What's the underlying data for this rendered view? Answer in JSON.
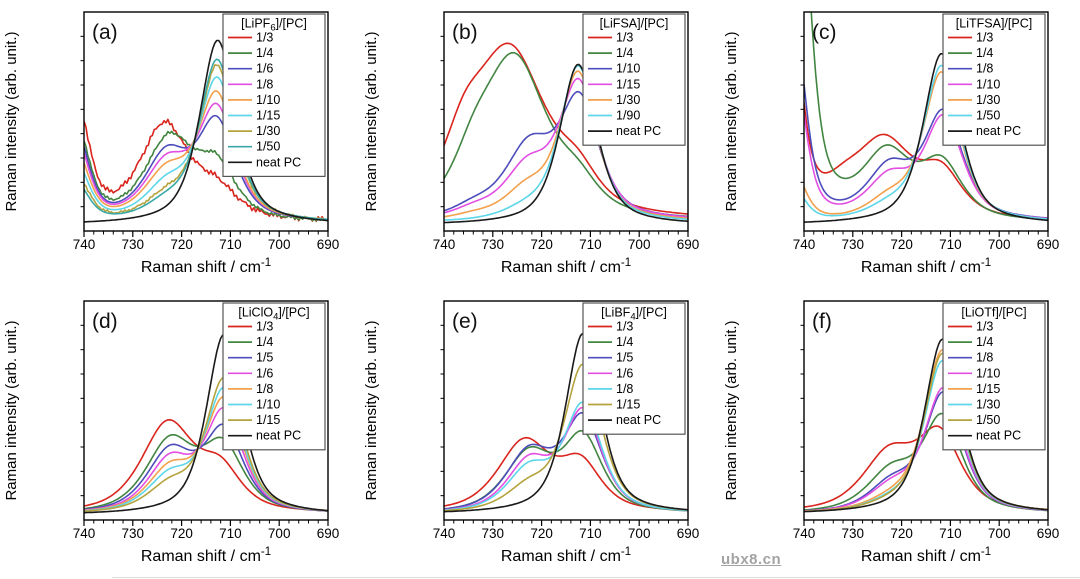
{
  "watermark": {
    "text": "ubx8.cn",
    "color": "#a3a3a3"
  },
  "colors": {
    "red": "#d9251d",
    "green": "#418541",
    "blue": "#4d4dbb",
    "magenta": "#e24fe2",
    "orange": "#f2a04c",
    "cyan": "#5cd6e8",
    "darkyellow": "#b4a33e",
    "teal": "#3ba8a8",
    "black": "#1a1a1a"
  },
  "chart_data": {
    "type": "line",
    "xlabel_segments": [
      {
        "t": "Raman shift / cm"
      },
      {
        "t": "-1",
        "sup": true
      }
    ],
    "ylabel": "Raman intensity (arb. unit.)",
    "x_ticks": [
      740,
      730,
      720,
      710,
      700,
      690
    ],
    "x_minor_step": 2,
    "x_range": [
      740,
      690
    ],
    "x_axis_reversed": true,
    "ylim": [
      0,
      1.15
    ],
    "grid": false,
    "legend_position": "top-right-inside",
    "peak_format": "each series is a sum of pseudo-Voigt bands [center_cm-1, height_arb, fwhm_cm-1] plus flat base",
    "panels": [
      {
        "id": "a",
        "label": "(a)",
        "legend_title": [
          {
            "t": "[LiPF"
          },
          {
            "t": "6",
            "sub": true
          },
          {
            "t": "]/[PC]"
          }
        ],
        "series": [
          {
            "label": "1/3",
            "color": "red",
            "peaks": [
              [
                712.8,
                0.14,
                10.0
              ],
              [
                723.5,
                0.5,
                12.0
              ],
              [
                741.5,
                0.62,
                6.0
              ]
            ],
            "base": 0.045,
            "noise": 0.01
          },
          {
            "label": "1/4",
            "color": "green",
            "peaks": [
              [
                712.8,
                0.26,
                9.5
              ],
              [
                722.5,
                0.43,
                12.0
              ],
              [
                741.5,
                0.5,
                6.0
              ]
            ],
            "base": 0.04,
            "noise": 0.006
          },
          {
            "label": "1/6",
            "color": "blue",
            "peaks": [
              [
                712.8,
                0.5,
                9.2
              ],
              [
                723.0,
                0.34,
                11.0
              ],
              [
                741.5,
                0.46,
                6.0
              ]
            ],
            "base": 0.04
          },
          {
            "label": "1/8",
            "color": "magenta",
            "peaks": [
              [
                712.8,
                0.575,
                9.2
              ],
              [
                723.0,
                0.29,
                11.0
              ],
              [
                741.5,
                0.42,
                6.0
              ]
            ],
            "base": 0.04
          },
          {
            "label": "1/10",
            "color": "orange",
            "peaks": [
              [
                712.8,
                0.65,
                9.0
              ],
              [
                723.0,
                0.24,
                11.0
              ],
              [
                741.5,
                0.36,
                6.0
              ]
            ],
            "base": 0.04
          },
          {
            "label": "1/15",
            "color": "cyan",
            "peaks": [
              [
                712.7,
                0.74,
                9.0
              ],
              [
                723.0,
                0.17,
                10.5
              ],
              [
                741.5,
                0.3,
                6.0
              ]
            ],
            "base": 0.04
          },
          {
            "label": "1/30",
            "color": "darkyellow",
            "peaks": [
              [
                712.7,
                0.815,
                8.8
              ],
              [
                723.0,
                0.11,
                10.5
              ],
              [
                741.5,
                0.24,
                6.0
              ]
            ],
            "base": 0.038,
            "noise": 0.005
          },
          {
            "label": "1/50",
            "color": "teal",
            "peaks": [
              [
                712.7,
                0.85,
                8.8
              ],
              [
                723.0,
                0.08,
                10.5
              ],
              [
                741.5,
                0.2,
                6.0
              ]
            ],
            "base": 0.038
          },
          {
            "label": "neat PC",
            "color": "black",
            "peaks": [
              [
                712.6,
                0.97,
                8.8
              ]
            ],
            "base": 0.032
          }
        ]
      },
      {
        "id": "b",
        "label": "(b)",
        "legend_title": [
          {
            "t": "[LiFSA]/[PC]"
          }
        ],
        "series": [
          {
            "label": "1/3",
            "color": "red",
            "peaks": [
              [
                712.5,
                0.15,
                10.0
              ],
              [
                726.5,
                0.88,
                18.0
              ],
              [
                736.0,
                0.25,
                10.0
              ]
            ],
            "base": 0.05
          },
          {
            "label": "1/4",
            "color": "green",
            "peaks": [
              [
                712.5,
                0.13,
                10.0
              ],
              [
                725.5,
                0.84,
                16.0
              ],
              [
                734.0,
                0.18,
                10.0
              ]
            ],
            "base": 0.045
          },
          {
            "label": "1/10",
            "color": "blue",
            "peaks": [
              [
                712.2,
                0.6,
                9.5
              ],
              [
                722.5,
                0.37,
                12.0
              ],
              [
                734.0,
                0.05,
                10.0
              ]
            ],
            "base": 0.05
          },
          {
            "label": "1/15",
            "color": "magenta",
            "peaks": [
              [
                712.4,
                0.7,
                9.3
              ],
              [
                722.8,
                0.26,
                11.5
              ],
              [
                734.0,
                0.04,
                10.0
              ]
            ],
            "base": 0.05
          },
          {
            "label": "1/30",
            "color": "orange",
            "peaks": [
              [
                712.5,
                0.77,
                9.0
              ],
              [
                723.0,
                0.145,
                11.0
              ],
              [
                734.0,
                0.02,
                10.0
              ]
            ],
            "base": 0.045
          },
          {
            "label": "1/90",
            "color": "cyan",
            "peaks": [
              [
                712.5,
                0.82,
                9.0
              ],
              [
                723.0,
                0.05,
                11.0
              ]
            ],
            "base": 0.04
          },
          {
            "label": "neat PC",
            "color": "black",
            "peaks": [
              [
                712.5,
                0.845,
                9.0
              ]
            ],
            "base": 0.03
          }
        ]
      },
      {
        "id": "c",
        "label": "(c)",
        "legend_title": [
          {
            "t": "[LiTFSA]/[PC]"
          }
        ],
        "series": [
          {
            "label": "1/3",
            "color": "red",
            "peaks": [
              [
                711.8,
                0.22,
                10.0
              ],
              [
                723.5,
                0.4,
                14.0
              ],
              [
                732.0,
                0.1,
                10.0
              ],
              [
                743.2,
                1.35,
                5.5
              ]
            ],
            "base": 0.045
          },
          {
            "label": "1/4",
            "color": "green",
            "peaks": [
              [
                711.8,
                0.28,
                10.0
              ],
              [
                723.0,
                0.34,
                12.0
              ],
              [
                741.8,
                2.4,
                6.0
              ]
            ],
            "base": 0.04
          },
          {
            "label": "1/8",
            "color": "blue",
            "peaks": [
              [
                711.4,
                0.55,
                9.5
              ],
              [
                722.5,
                0.26,
                11.0
              ],
              [
                742.0,
                1.05,
                5.5
              ]
            ],
            "base": 0.045
          },
          {
            "label": "1/10",
            "color": "magenta",
            "peaks": [
              [
                711.4,
                0.53,
                9.5
              ],
              [
                722.5,
                0.21,
                11.0
              ],
              [
                742.0,
                0.82,
                5.5
              ]
            ],
            "base": 0.045
          },
          {
            "label": "1/30",
            "color": "orange",
            "peaks": [
              [
                711.8,
                0.78,
                9.0
              ],
              [
                722.5,
                0.1,
                10.5
              ],
              [
                742.0,
                0.26,
                5.5
              ]
            ],
            "base": 0.04
          },
          {
            "label": "1/50",
            "color": "cyan",
            "peaks": [
              [
                711.8,
                0.82,
                9.0
              ],
              [
                722.5,
                0.06,
                10.5
              ],
              [
                742.0,
                0.17,
                5.5
              ]
            ],
            "base": 0.04
          },
          {
            "label": "neat PC",
            "color": "black",
            "peaks": [
              [
                711.8,
                0.9,
                9.0
              ]
            ],
            "base": 0.032
          }
        ]
      },
      {
        "id": "d",
        "label": "(d)",
        "legend_title": [
          {
            "t": "[LiClO"
          },
          {
            "t": "4",
            "sub": true
          },
          {
            "t": "]/[PC]"
          }
        ],
        "series": [
          {
            "label": "1/3",
            "color": "red",
            "peaks": [
              [
                712.0,
                0.2,
                10.0
              ],
              [
                722.8,
                0.47,
                13.0
              ]
            ],
            "base": 0.03
          },
          {
            "label": "1/4",
            "color": "green",
            "peaks": [
              [
                711.5,
                0.33,
                10.0
              ],
              [
                722.3,
                0.375,
                12.0
              ]
            ],
            "base": 0.028
          },
          {
            "label": "1/5",
            "color": "blue",
            "peaks": [
              [
                711.3,
                0.42,
                9.5
              ],
              [
                722.3,
                0.32,
                11.5
              ]
            ],
            "base": 0.028
          },
          {
            "label": "1/6",
            "color": "magenta",
            "peaks": [
              [
                711.3,
                0.52,
                9.2
              ],
              [
                722.3,
                0.27,
                11.0
              ]
            ],
            "base": 0.028
          },
          {
            "label": "1/8",
            "color": "orange",
            "peaks": [
              [
                711.3,
                0.585,
                9.2
              ],
              [
                722.3,
                0.22,
                11.0
              ]
            ],
            "base": 0.028
          },
          {
            "label": "1/10",
            "color": "cyan",
            "peaks": [
              [
                711.3,
                0.64,
                9.0
              ],
              [
                722.3,
                0.18,
                11.0
              ]
            ],
            "base": 0.028
          },
          {
            "label": "1/15",
            "color": "darkyellow",
            "peaks": [
              [
                711.3,
                0.7,
                9.0
              ],
              [
                722.3,
                0.13,
                11.0
              ]
            ],
            "base": 0.028
          },
          {
            "label": "neat PC",
            "color": "black",
            "peaks": [
              [
                711.3,
                0.95,
                8.6
              ]
            ],
            "base": 0.025
          }
        ]
      },
      {
        "id": "e",
        "label": "(e)",
        "legend_title": [
          {
            "t": "[LiBF"
          },
          {
            "t": "4",
            "sub": true
          },
          {
            "t": "]/[PC]"
          }
        ],
        "series": [
          {
            "label": "1/3",
            "color": "red",
            "peaks": [
              [
                712.0,
                0.235,
                10.0
              ],
              [
                723.5,
                0.37,
                13.0
              ]
            ],
            "base": 0.035
          },
          {
            "label": "1/4",
            "color": "green",
            "peaks": [
              [
                711.5,
                0.38,
                9.5
              ],
              [
                722.5,
                0.31,
                12.0
              ]
            ],
            "base": 0.03
          },
          {
            "label": "1/5",
            "color": "blue",
            "peaks": [
              [
                711.5,
                0.48,
                9.5
              ],
              [
                722.5,
                0.31,
                11.5
              ]
            ],
            "base": 0.03
          },
          {
            "label": "1/6",
            "color": "magenta",
            "peaks": [
              [
                711.5,
                0.52,
                9.2
              ],
              [
                722.5,
                0.26,
                11.0
              ]
            ],
            "base": 0.03
          },
          {
            "label": "1/8",
            "color": "cyan",
            "peaks": [
              [
                711.5,
                0.555,
                9.2
              ],
              [
                722.5,
                0.22,
                11.0
              ]
            ],
            "base": 0.03
          },
          {
            "label": "1/15",
            "color": "darkyellow",
            "peaks": [
              [
                711.5,
                0.77,
                9.0
              ],
              [
                722.5,
                0.12,
                11.0
              ]
            ],
            "base": 0.03
          },
          {
            "label": "neat PC",
            "color": "black",
            "peaks": [
              [
                711.5,
                0.95,
                8.6
              ]
            ],
            "base": 0.03
          }
        ]
      },
      {
        "id": "f",
        "label": "(f)",
        "legend_title": [
          {
            "t": "[LiOTf]/[PC]"
          }
        ],
        "series": [
          {
            "label": "1/3",
            "color": "red",
            "peaks": [
              [
                712.2,
                0.38,
                10.5
              ],
              [
                722.5,
                0.3,
                13.0
              ]
            ],
            "base": 0.035
          },
          {
            "label": "1/4",
            "color": "green",
            "peaks": [
              [
                711.6,
                0.485,
                9.6
              ],
              [
                722.0,
                0.21,
                12.0
              ]
            ],
            "base": 0.03
          },
          {
            "label": "1/8",
            "color": "blue",
            "peaks": [
              [
                711.4,
                0.62,
                9.3
              ],
              [
                722.0,
                0.14,
                11.0
              ]
            ],
            "base": 0.03
          },
          {
            "label": "1/10",
            "color": "magenta",
            "peaks": [
              [
                711.4,
                0.645,
                9.3
              ],
              [
                722.0,
                0.12,
                11.0
              ]
            ],
            "base": 0.03
          },
          {
            "label": "1/15",
            "color": "orange",
            "peaks": [
              [
                711.6,
                0.855,
                9.0
              ],
              [
                722.0,
                0.05,
                11.0
              ]
            ],
            "base": 0.03
          },
          {
            "label": "1/30",
            "color": "cyan",
            "peaks": [
              [
                711.6,
                0.8,
                9.0
              ],
              [
                722.0,
                0.04,
                11.0
              ]
            ],
            "base": 0.03
          },
          {
            "label": "1/50",
            "color": "darkyellow",
            "peaks": [
              [
                711.6,
                0.84,
                9.0
              ],
              [
                722.0,
                0.03,
                11.0
              ]
            ],
            "base": 0.03
          },
          {
            "label": "neat PC",
            "color": "black",
            "peaks": [
              [
                711.6,
                0.92,
                8.8
              ]
            ],
            "base": 0.03
          }
        ]
      }
    ]
  }
}
